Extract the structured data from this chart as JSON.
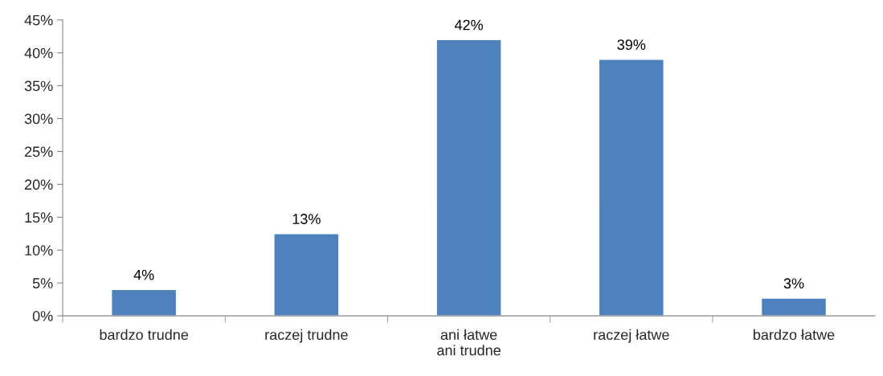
{
  "chart_data": {
    "type": "bar",
    "categories": [
      "bardzo trudne",
      "raczej trudne",
      "ani łatwe ani trudne",
      "raczej łatwe",
      "bardzo łatwe"
    ],
    "values": [
      4,
      12.5,
      42,
      39,
      2.7
    ],
    "value_labels": [
      "4%",
      "13%",
      "42%",
      "39%",
      "3%"
    ],
    "color": "#4f81bd",
    "ylim": [
      0,
      45
    ],
    "yticks": [
      {
        "value": 0,
        "label": "0%"
      },
      {
        "value": 5,
        "label": "5%"
      },
      {
        "value": 10,
        "label": "10%"
      },
      {
        "value": 15,
        "label": "15%"
      },
      {
        "value": 20,
        "label": "20%"
      },
      {
        "value": 25,
        "label": "25%"
      },
      {
        "value": 30,
        "label": "30%"
      },
      {
        "value": 35,
        "label": "35%"
      },
      {
        "value": 40,
        "label": "40%"
      },
      {
        "value": 45,
        "label": "45%"
      }
    ],
    "grid": false,
    "legend": false
  }
}
